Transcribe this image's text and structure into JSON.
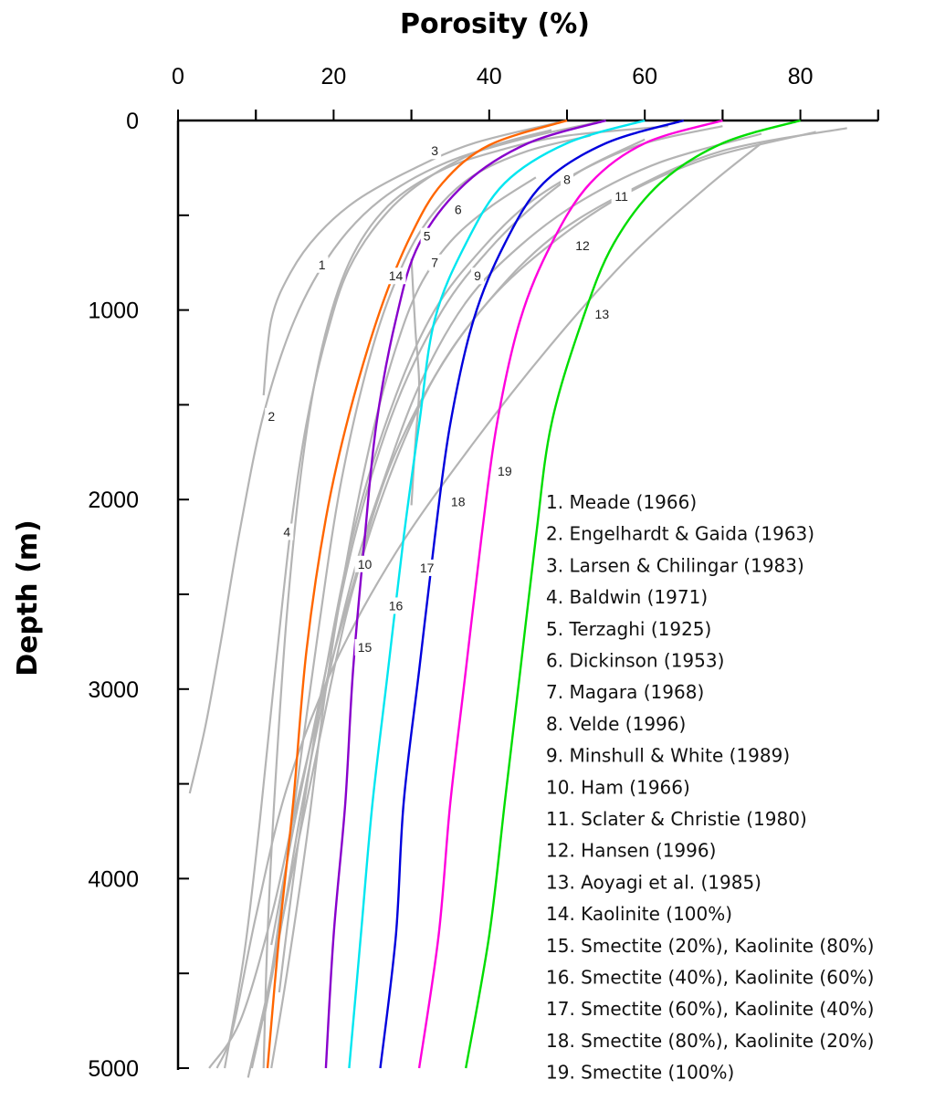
{
  "chart_data": {
    "type": "line",
    "xlabel": "Porosity (%)",
    "ylabel": "Depth (m)",
    "xlim": [
      0,
      90
    ],
    "ylim": [
      0,
      5000
    ],
    "x_axis_position": "top",
    "y_inverted": true,
    "grid": false,
    "x_ticks": [
      "0",
      "20",
      "40",
      "60",
      "80"
    ],
    "y_ticks": [
      "0",
      "1000",
      "2000",
      "3000",
      "4000",
      "5000"
    ],
    "legend_placement": "bottom-right",
    "legend": [
      "1. Meade (1966)",
      "2. Engelhardt & Gaida (1963)",
      "3. Larsen & Chilingar (1983)",
      "4. Baldwin (1971)",
      "5. Terzaghi (1925)",
      "6. Dickinson (1953)",
      "7. Magara (1968)",
      "8. Velde (1996)",
      "9. Minshull & White (1989)",
      "10. Ham (1966)",
      "11. Sclater & Christie (1980)",
      "12. Hansen (1996)",
      "13. Aoyagi et al. (1985)",
      "14. Kaolinite (100%)",
      "15. Smectite (20%), Kaolinite (80%)",
      "16. Smectite (40%), Kaolinite (60%)",
      "17. Smectite (60%), Kaolinite (40%)",
      "18. Smectite (80%), Kaolinite (20%)",
      "19. Smectite (100%)"
    ],
    "series": [
      {
        "label": "1",
        "color": "#b4b4b4",
        "label_at": [
          18.5,
          760
        ],
        "points": [
          [
            50,
            0
          ],
          [
            38,
            120
          ],
          [
            30,
            260
          ],
          [
            23,
            420
          ],
          [
            18,
            600
          ],
          [
            14.5,
            800
          ],
          [
            12,
            1050
          ],
          [
            11,
            1450
          ]
        ]
      },
      {
        "label": "2",
        "color": "#b4b4b4",
        "label_at": [
          12,
          1560
        ],
        "points": [
          [
            55,
            0
          ],
          [
            44,
            100
          ],
          [
            34,
            230
          ],
          [
            26,
            420
          ],
          [
            20,
            680
          ],
          [
            15,
            1050
          ],
          [
            11,
            1550
          ],
          [
            8,
            2150
          ],
          [
            5.5,
            2750
          ],
          [
            3.5,
            3200
          ],
          [
            1.5,
            3550
          ]
        ]
      },
      {
        "label": "3",
        "color": "#b4b4b4",
        "label_at": [
          33,
          160
        ],
        "points": [
          [
            63,
            30
          ],
          [
            50,
            80
          ],
          [
            42,
            150
          ],
          [
            34,
            260
          ],
          [
            27,
            450
          ],
          [
            22,
            750
          ],
          [
            18.5,
            1200
          ],
          [
            16,
            1800
          ],
          [
            14,
            2600
          ],
          [
            12.5,
            3500
          ],
          [
            11.5,
            4300
          ],
          [
            11,
            5000
          ]
        ]
      },
      {
        "label": "4",
        "color": "#b4b4b4",
        "label_at": [
          14,
          2170
        ],
        "points": [
          [
            48,
            50
          ],
          [
            40,
            140
          ],
          [
            33,
            280
          ],
          [
            27,
            480
          ],
          [
            22,
            780
          ],
          [
            19,
            1150
          ],
          [
            16.5,
            1600
          ],
          [
            14.5,
            2150
          ],
          [
            12.5,
            2900
          ],
          [
            10.5,
            3700
          ],
          [
            8.5,
            4400
          ],
          [
            6,
            5000
          ]
        ]
      },
      {
        "label": "5",
        "color": "#b4b4b4",
        "label_at": [
          32,
          610
        ],
        "points": [
          [
            53,
            80
          ],
          [
            45,
            160
          ],
          [
            38,
            290
          ],
          [
            33,
            480
          ],
          [
            29,
            750
          ],
          [
            25,
            1200
          ],
          [
            21,
            1900
          ],
          [
            18,
            2700
          ],
          [
            15,
            3600
          ],
          [
            12,
            4500
          ],
          [
            9.5,
            5000
          ]
        ]
      },
      {
        "label": "6",
        "color": "#b4b4b4",
        "label_at": [
          36,
          470
        ],
        "points": [
          [
            30,
            730
          ],
          [
            30.5,
            1100
          ],
          [
            31,
            1400
          ],
          [
            30.5,
            1700
          ],
          [
            30,
            2030
          ]
        ]
      },
      {
        "label": "7",
        "color": "#b4b4b4",
        "label_at": [
          33,
          750
        ],
        "points": [
          [
            46,
            300
          ],
          [
            40,
            460
          ],
          [
            35,
            640
          ],
          [
            31,
            880
          ],
          [
            28,
            1200
          ],
          [
            25,
            1650
          ],
          [
            22,
            2250
          ],
          [
            19,
            3000
          ],
          [
            16.5,
            3800
          ],
          [
            14,
            4500
          ],
          [
            12,
            5000
          ]
        ]
      },
      {
        "label": "8",
        "color": "#b4b4b4",
        "label_at": [
          50,
          310
        ],
        "points": [
          [
            60,
            100
          ],
          [
            52,
            260
          ],
          [
            46,
            440
          ],
          [
            40,
            680
          ],
          [
            34,
            1000
          ],
          [
            28,
            1500
          ],
          [
            23,
            2150
          ],
          [
            19,
            2900
          ],
          [
            15,
            3700
          ],
          [
            12,
            4350
          ]
        ]
      },
      {
        "label": "9",
        "color": "#b4b4b4",
        "label_at": [
          38.5,
          820
        ],
        "points": [
          [
            70,
            30
          ],
          [
            60,
            120
          ],
          [
            52,
            260
          ],
          [
            45,
            440
          ],
          [
            39,
            680
          ],
          [
            33,
            1000
          ],
          [
            28,
            1450
          ],
          [
            23,
            2100
          ],
          [
            19,
            2900
          ],
          [
            15.5,
            3800
          ],
          [
            13,
            4600
          ]
        ]
      },
      {
        "label": "10",
        "color": "#b4b4b4",
        "label_at": [
          24,
          2340
        ],
        "points": [
          [
            75,
            70
          ],
          [
            62,
            220
          ],
          [
            52,
            420
          ],
          [
            44,
            660
          ],
          [
            37,
            960
          ],
          [
            31,
            1400
          ],
          [
            26,
            1950
          ],
          [
            22.5,
            2400
          ],
          [
            19,
            3000
          ],
          [
            16,
            3600
          ],
          [
            13.5,
            4200
          ],
          [
            11,
            4750
          ]
        ]
      },
      {
        "label": "11",
        "color": "#b4b4b4",
        "label_at": [
          57,
          400
        ],
        "points": [
          [
            86,
            40
          ],
          [
            70,
            160
          ],
          [
            58,
            370
          ],
          [
            48,
            620
          ],
          [
            40,
            950
          ],
          [
            33,
            1350
          ],
          [
            27,
            1900
          ],
          [
            22,
            2550
          ],
          [
            18,
            3300
          ],
          [
            14.5,
            4000
          ],
          [
            11.5,
            4600
          ],
          [
            9,
            5050
          ]
        ]
      },
      {
        "label": "12",
        "color": "#b4b4b4",
        "label_at": [
          52,
          660
        ],
        "points": [
          [
            82,
            60
          ],
          [
            68,
            200
          ],
          [
            57,
            400
          ],
          [
            48,
            650
          ],
          [
            40,
            950
          ],
          [
            33,
            1350
          ],
          [
            27,
            1850
          ],
          [
            22.5,
            2450
          ],
          [
            18.5,
            3050
          ],
          [
            15,
            3650
          ],
          [
            12,
            4200
          ],
          [
            8,
            4750
          ],
          [
            4,
            5000
          ]
        ]
      },
      {
        "label": "13",
        "color": "#b4b4b4",
        "label_at": [
          54.5,
          1020
        ],
        "points": [
          [
            75,
            120
          ],
          [
            68,
            350
          ],
          [
            58,
            720
          ],
          [
            48,
            1180
          ],
          [
            38,
            1700
          ],
          [
            28,
            2280
          ],
          [
            20,
            2880
          ],
          [
            14,
            3520
          ],
          [
            10,
            4200
          ],
          [
            7,
            4800
          ],
          [
            5,
            5000
          ]
        ]
      },
      {
        "label": "14",
        "color": "#ff6600",
        "label_at": [
          28,
          820
        ],
        "points": [
          [
            50,
            0
          ],
          [
            40,
            130
          ],
          [
            34,
            330
          ],
          [
            30,
            600
          ],
          [
            26,
            1000
          ],
          [
            22,
            1550
          ],
          [
            19,
            2100
          ],
          [
            16.5,
            2800
          ],
          [
            14.8,
            3600
          ],
          [
            13,
            4300
          ],
          [
            11.5,
            5000
          ]
        ]
      },
      {
        "label": "15",
        "color": "#8800cc",
        "label_at": [
          24,
          2780
        ],
        "points": [
          [
            55,
            0
          ],
          [
            45,
            120
          ],
          [
            37,
            330
          ],
          [
            31,
            650
          ],
          [
            28,
            1050
          ],
          [
            25.5,
            1600
          ],
          [
            24,
            2200
          ],
          [
            22.5,
            2900
          ],
          [
            21.5,
            3600
          ],
          [
            20,
            4300
          ],
          [
            19,
            5000
          ]
        ]
      },
      {
        "label": "16",
        "color": "#00e6f0",
        "label_at": [
          28,
          2560
        ],
        "points": [
          [
            60,
            0
          ],
          [
            50,
            120
          ],
          [
            42,
            330
          ],
          [
            37,
            650
          ],
          [
            33,
            1050
          ],
          [
            31,
            1600
          ],
          [
            29,
            2200
          ],
          [
            27,
            2900
          ],
          [
            25,
            3600
          ],
          [
            23.5,
            4300
          ],
          [
            22,
            5000
          ]
        ]
      },
      {
        "label": "17",
        "color": "#0000dd",
        "label_at": [
          32,
          2360
        ],
        "points": [
          [
            65,
            0
          ],
          [
            55,
            120
          ],
          [
            47,
            330
          ],
          [
            42,
            650
          ],
          [
            38,
            1050
          ],
          [
            35,
            1600
          ],
          [
            33,
            2200
          ],
          [
            31,
            2900
          ],
          [
            29,
            3600
          ],
          [
            28,
            4300
          ],
          [
            26,
            5000
          ]
        ]
      },
      {
        "label": "18",
        "color": "#ff00dd",
        "label_at": [
          36,
          2010
        ],
        "points": [
          [
            70,
            0
          ],
          [
            60,
            120
          ],
          [
            53,
            330
          ],
          [
            48,
            650
          ],
          [
            44,
            1050
          ],
          [
            41,
            1600
          ],
          [
            39,
            2200
          ],
          [
            37,
            2900
          ],
          [
            35,
            3600
          ],
          [
            33.5,
            4300
          ],
          [
            31,
            5000
          ]
        ]
      },
      {
        "label": "19",
        "color": "#00dd00",
        "label_at": [
          42,
          1850
        ],
        "points": [
          [
            80,
            0
          ],
          [
            70,
            120
          ],
          [
            62,
            330
          ],
          [
            56,
            650
          ],
          [
            52,
            1050
          ],
          [
            48,
            1600
          ],
          [
            46,
            2200
          ],
          [
            44,
            2900
          ],
          [
            42,
            3600
          ],
          [
            40,
            4300
          ],
          [
            37,
            5000
          ]
        ]
      }
    ]
  }
}
